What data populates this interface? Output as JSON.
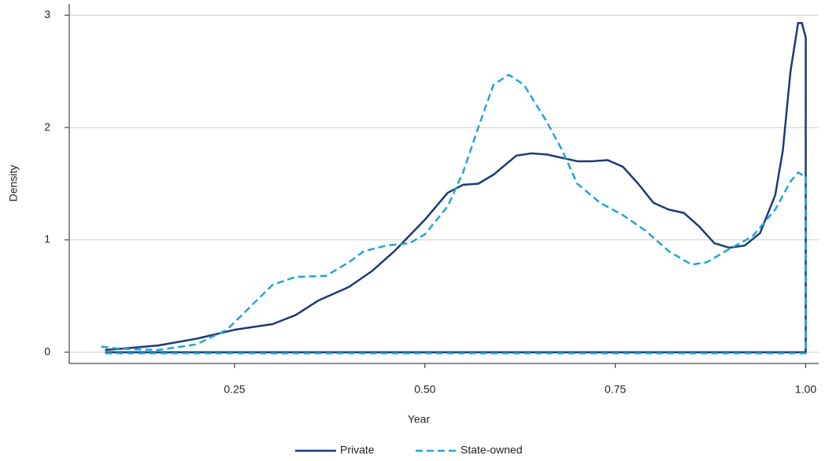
{
  "chart_data": {
    "type": "line",
    "x_label": "Year",
    "y_label": "Density",
    "xlim": [
      0.033,
      1.017
    ],
    "ylim": [
      -0.1,
      3.1
    ],
    "xticks": [
      0.25,
      {
        "value": 0.5,
        "label": "0.50"
      },
      0.75,
      {
        "value": 1,
        "label": "1.00"
      }
    ],
    "yticks": [
      0,
      1,
      2,
      3
    ],
    "grid": true,
    "legend": "bottom",
    "series": [
      {
        "name": "Private",
        "color": "#1b3a78",
        "line_style": "solid",
        "x": [
          0.08,
          0.1,
          0.15,
          0.2,
          0.25,
          0.3,
          0.33,
          0.36,
          0.4,
          0.43,
          0.46,
          0.5,
          0.53,
          0.55,
          0.57,
          0.59,
          0.62,
          0.64,
          0.66,
          0.7,
          0.72,
          0.74,
          0.76,
          0.78,
          0.8,
          0.82,
          0.84,
          0.86,
          0.88,
          0.9,
          0.92,
          0.94,
          0.96,
          0.97,
          0.98,
          0.99,
          0.995,
          1.0,
          1.0,
          0.08
        ],
        "values": [
          0.02,
          0.03,
          0.06,
          0.12,
          0.2,
          0.25,
          0.33,
          0.46,
          0.58,
          0.72,
          0.9,
          1.18,
          1.42,
          1.49,
          1.5,
          1.58,
          1.75,
          1.77,
          1.76,
          1.7,
          1.7,
          1.71,
          1.65,
          1.5,
          1.33,
          1.27,
          1.24,
          1.12,
          0.97,
          0.93,
          0.95,
          1.06,
          1.4,
          1.8,
          2.5,
          2.93,
          2.93,
          2.8,
          0,
          0
        ]
      },
      {
        "name": "State-owned",
        "color": "#22a5d3",
        "line_style": "dashed",
        "x": [
          0.075,
          0.1,
          0.15,
          0.2,
          0.24,
          0.27,
          0.3,
          0.33,
          0.37,
          0.4,
          0.42,
          0.45,
          0.48,
          0.5,
          0.53,
          0.55,
          0.57,
          0.59,
          0.61,
          0.63,
          0.66,
          0.68,
          0.7,
          0.73,
          0.76,
          0.79,
          0.82,
          0.85,
          0.87,
          0.9,
          0.93,
          0.96,
          0.98,
          0.99,
          0.997,
          1.0,
          1.0,
          0.075
        ],
        "values": [
          0.05,
          0.03,
          0.02,
          0.07,
          0.2,
          0.4,
          0.6,
          0.67,
          0.68,
          0.8,
          0.9,
          0.95,
          0.97,
          1.05,
          1.3,
          1.6,
          2.0,
          2.38,
          2.47,
          2.38,
          2.05,
          1.8,
          1.5,
          1.33,
          1.22,
          1.08,
          0.9,
          0.78,
          0.8,
          0.92,
          1.03,
          1.27,
          1.52,
          1.6,
          1.57,
          1.57,
          -0.01,
          -0.01
        ]
      }
    ]
  }
}
